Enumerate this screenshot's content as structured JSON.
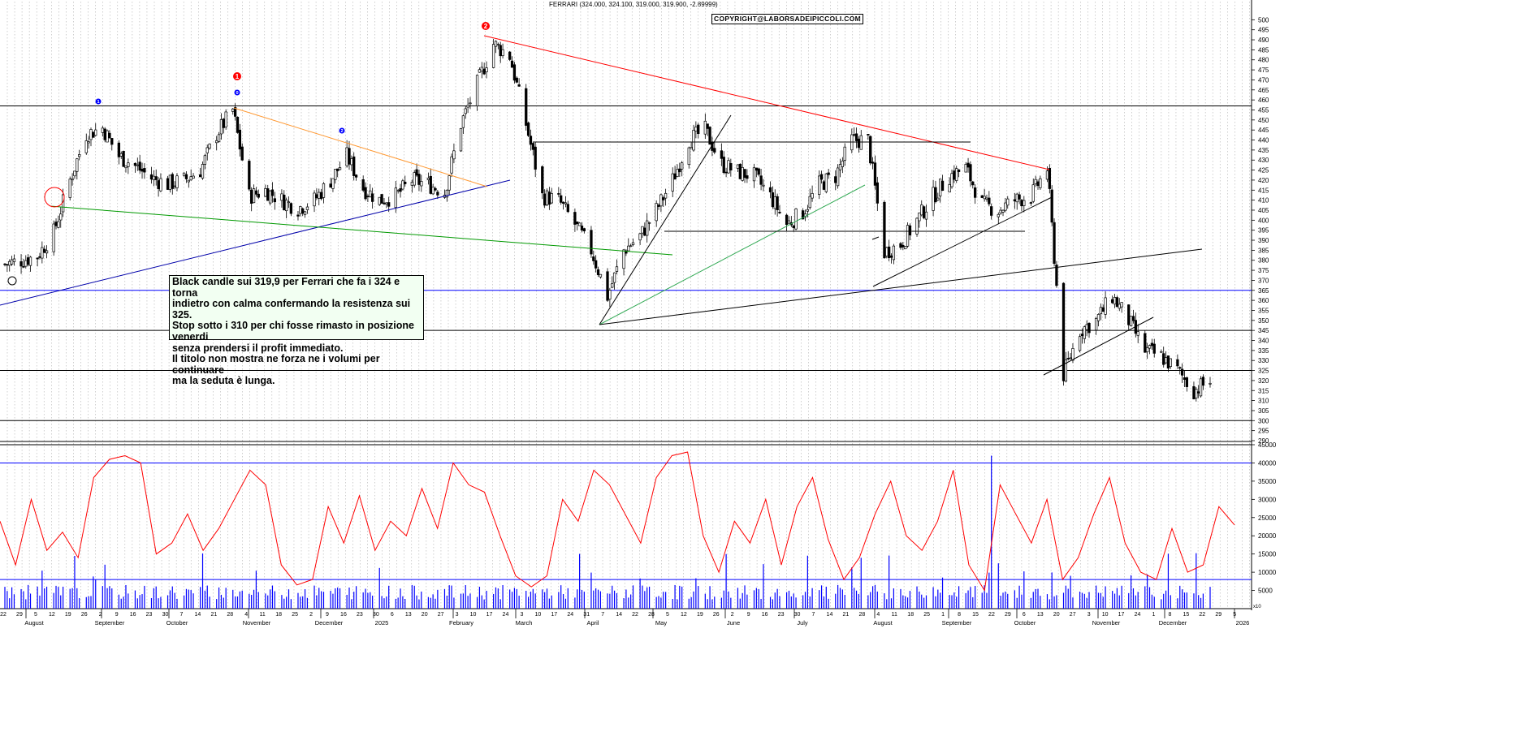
{
  "header": {
    "title": "FERRARI (324.000, 324.100, 319.000, 319.900, -2.89999)",
    "copyright": "COPYRIGHT@LABORSADEIPICCOLI.COM"
  },
  "note": {
    "text": "Black candle sui 319,9 per Ferrari che fa i 324 e torna\nindietro con calma confermando la resistenza sui 325.\nStop sotto i 310 per chi fosse rimasto in posizione venerdi\nsenza prendersi il profit immediato.\nIl titolo non mostra ne forza ne i volumi per continuare\nma la seduta è lunga."
  },
  "colors": {
    "candle": "#000000",
    "volume": "#0000ff",
    "oscillator": "#ff0000",
    "support": "#0000ff",
    "resistance": "#000000",
    "grid": "#b0b0b0"
  },
  "chart_data": [
    {
      "type": "candlestick",
      "title": "FERRARI (324.000, 324.100, 319.000, 319.900, -2.89999)",
      "ylim": [
        290,
        505
      ],
      "y_ticks": [
        290,
        295,
        300,
        305,
        310,
        315,
        320,
        325,
        330,
        335,
        340,
        345,
        350,
        355,
        360,
        365,
        370,
        375,
        380,
        385,
        390,
        395,
        400,
        405,
        410,
        415,
        420,
        425,
        430,
        435,
        440,
        445,
        450,
        455,
        460,
        465,
        470,
        475,
        480,
        485,
        490,
        495,
        500
      ],
      "x_months": [
        "August",
        "September",
        "October",
        "November",
        "December",
        "2025",
        "February",
        "March",
        "April",
        "May",
        "June",
        "July",
        "August",
        "September",
        "October",
        "November",
        "December",
        "2026"
      ],
      "x_days": [
        "22",
        "29",
        "5",
        "12",
        "19",
        "26",
        "2",
        "9",
        "16",
        "23",
        "30",
        "7",
        "14",
        "21",
        "28",
        "4",
        "11",
        "18",
        "25",
        "2",
        "9",
        "16",
        "23",
        "30",
        "6",
        "13",
        "20",
        "27",
        "3",
        "10",
        "17",
        "24",
        "3",
        "10",
        "17",
        "24",
        "31",
        "7",
        "14",
        "22",
        "28",
        "5",
        "12",
        "19",
        "26",
        "2",
        "9",
        "16",
        "23",
        "30",
        "7",
        "14",
        "21",
        "28",
        "4",
        "11",
        "18",
        "25",
        "1",
        "8",
        "15",
        "22",
        "29",
        "6",
        "13",
        "20",
        "27",
        "3",
        "10",
        "17",
        "24",
        "1",
        "8",
        "15",
        "22",
        "29",
        "5"
      ],
      "series": [
        {
          "name": "close",
          "points": [
            [
              "2024-07-22",
              378
            ],
            [
              "2024-08-05",
              382
            ],
            [
              "2024-08-12",
              394
            ],
            [
              "2024-08-19",
              420
            ],
            [
              "2024-08-26",
              443
            ],
            [
              "2024-09-02",
              446
            ],
            [
              "2024-09-09",
              432
            ],
            [
              "2024-09-16",
              427
            ],
            [
              "2024-09-23",
              421
            ],
            [
              "2024-09-30",
              418
            ],
            [
              "2024-10-07",
              420
            ],
            [
              "2024-10-14",
              425
            ],
            [
              "2024-10-21",
              443
            ],
            [
              "2024-10-28",
              455
            ],
            [
              "2024-11-04",
              412
            ],
            [
              "2024-11-11",
              415
            ],
            [
              "2024-11-18",
              410
            ],
            [
              "2024-11-25",
              406
            ],
            [
              "2024-12-02",
              410
            ],
            [
              "2024-12-09",
              420
            ],
            [
              "2024-12-16",
              432
            ],
            [
              "2024-12-23",
              416
            ],
            [
              "2024-12-30",
              410
            ],
            [
              "2025-01-06",
              412
            ],
            [
              "2025-01-13",
              420
            ],
            [
              "2025-01-20",
              418
            ],
            [
              "2025-01-27",
              414
            ],
            [
              "2025-02-03",
              448
            ],
            [
              "2025-02-10",
              468
            ],
            [
              "2025-02-17",
              488
            ],
            [
              "2025-02-24",
              482
            ],
            [
              "2025-03-03",
              448
            ],
            [
              "2025-03-10",
              412
            ],
            [
              "2025-03-17",
              410
            ],
            [
              "2025-03-24",
              398
            ],
            [
              "2025-03-31",
              385
            ],
            [
              "2025-04-07",
              362
            ],
            [
              "2025-04-14",
              385
            ],
            [
              "2025-04-21",
              392
            ],
            [
              "2025-04-28",
              405
            ],
            [
              "2025-05-05",
              420
            ],
            [
              "2025-05-12",
              440
            ],
            [
              "2025-05-19",
              445
            ],
            [
              "2025-05-26",
              428
            ],
            [
              "2025-06-02",
              424
            ],
            [
              "2025-06-09",
              422
            ],
            [
              "2025-06-16",
              412
            ],
            [
              "2025-06-23",
              398
            ],
            [
              "2025-06-30",
              404
            ],
            [
              "2025-07-07",
              418
            ],
            [
              "2025-07-14",
              422
            ],
            [
              "2025-07-21",
              440
            ],
            [
              "2025-07-28",
              440
            ],
            [
              "2025-08-04",
              384
            ],
            [
              "2025-08-11",
              388
            ],
            [
              "2025-08-18",
              400
            ],
            [
              "2025-08-25",
              412
            ],
            [
              "2025-09-01",
              422
            ],
            [
              "2025-09-08",
              426
            ],
            [
              "2025-09-15",
              408
            ],
            [
              "2025-09-22",
              405
            ],
            [
              "2025-09-29",
              410
            ],
            [
              "2025-10-06",
              412
            ],
            [
              "2025-10-13",
              426
            ],
            [
              "2025-10-20",
              323
            ],
            [
              "2025-10-27",
              345
            ],
            [
              "2025-11-03",
              350
            ],
            [
              "2025-11-10",
              362
            ],
            [
              "2025-11-17",
              350
            ],
            [
              "2025-11-24",
              335
            ],
            [
              "2025-12-01",
              332
            ],
            [
              "2025-12-08",
              325
            ],
            [
              "2025-12-15",
              315
            ],
            [
              "2025-12-22",
              319.9
            ]
          ]
        },
        {
          "name": "volume",
          "points": []
        }
      ],
      "lines": [
        {
          "label": "",
          "value": 457
        },
        {
          "label": "",
          "value": 365
        },
        {
          "label": "",
          "value": 345
        },
        {
          "label": "",
          "value": 325
        },
        {
          "label": "",
          "value": 300
        }
      ],
      "markers": [
        "1",
        "1",
        "2",
        "1",
        "2"
      ]
    },
    {
      "type": "line",
      "ylim": [
        0,
        45000
      ],
      "y_ticks": [
        5000,
        10000,
        15000,
        20000,
        25000,
        30000,
        35000,
        40000,
        45000
      ],
      "series": [
        {
          "name": "",
          "values": [
            24000,
            12000,
            30000,
            16000,
            21000,
            14000,
            36000,
            41000,
            42000,
            40000,
            15000,
            18000,
            26000,
            16000,
            22000,
            30000,
            38000,
            34000,
            12000,
            6500,
            8000,
            28000,
            18000,
            31000,
            16000,
            24000,
            20000,
            33000,
            22000,
            40000,
            34000,
            32000,
            20000,
            9000,
            6000,
            9000,
            30000,
            24000,
            38000,
            34000,
            26000,
            18000,
            36000,
            42000,
            43000,
            20000,
            10000,
            24000,
            18000,
            30000,
            12000,
            28000,
            36000,
            19000,
            8000,
            14000,
            26000,
            35000,
            20000,
            16000,
            24000,
            38000,
            12000,
            5000,
            34000,
            26000,
            18000,
            30000,
            8000,
            14000,
            26000,
            36000,
            18000,
            10000,
            8000,
            22000,
            10000,
            12000,
            28000,
            23000
          ]
        }
      ]
    }
  ]
}
